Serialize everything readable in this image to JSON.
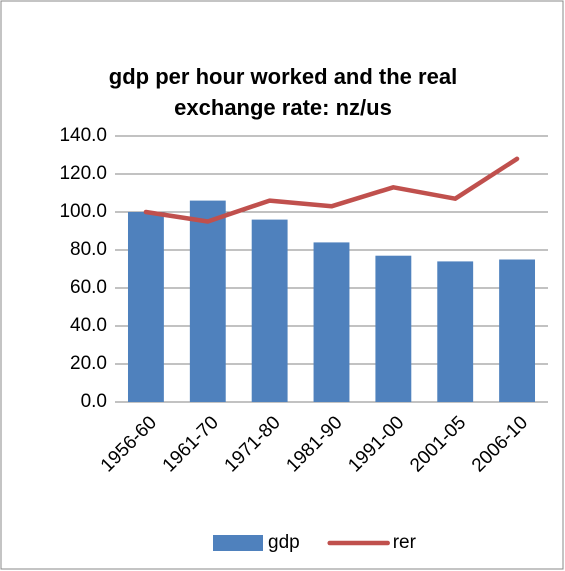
{
  "chart_data": {
    "type": "bar",
    "title": [
      "gdp per hour worked and the real",
      "exchange rate: nz/us"
    ],
    "categories": [
      "1956-60",
      "1961-70",
      "1971-80",
      "1981-90",
      "1991-00",
      "2001-05",
      "2006-10"
    ],
    "series": [
      {
        "name": "gdp",
        "type": "bar",
        "color": "#4f81bd",
        "values": [
          100,
          106,
          96,
          84,
          77,
          74,
          75
        ]
      },
      {
        "name": "rer",
        "type": "line",
        "color": "#c0504d",
        "values": [
          100,
          95,
          106,
          103,
          113,
          107,
          128
        ]
      }
    ],
    "ylim": [
      0,
      140
    ],
    "yticks": [
      {
        "value": 0,
        "label": "0.0"
      },
      {
        "value": 20,
        "label": "20.0"
      },
      {
        "value": 40,
        "label": "40.0"
      },
      {
        "value": 60,
        "label": "60.0"
      },
      {
        "value": 80,
        "label": "80.0"
      },
      {
        "value": 100,
        "label": "100.0"
      },
      {
        "value": 120,
        "label": "120.0"
      },
      {
        "value": 140,
        "label": "140.0"
      }
    ],
    "grid": true,
    "legend": "bottom"
  }
}
